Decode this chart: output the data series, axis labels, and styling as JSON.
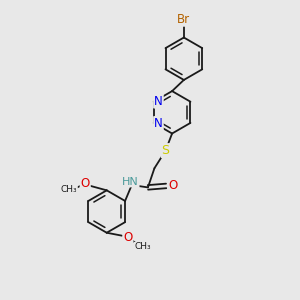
{
  "bg_color": "#e8e8e8",
  "bond_color": "#1a1a1a",
  "br_color": "#b36200",
  "n_color": "#0000ee",
  "o_color": "#dd0000",
  "s_color": "#cccc00",
  "hn_color": "#4a9a9a",
  "font_size": 7.5,
  "bond_width": 1.3,
  "dbo": 0.07,
  "xlim": [
    0,
    10
  ],
  "ylim": [
    0,
    10
  ]
}
